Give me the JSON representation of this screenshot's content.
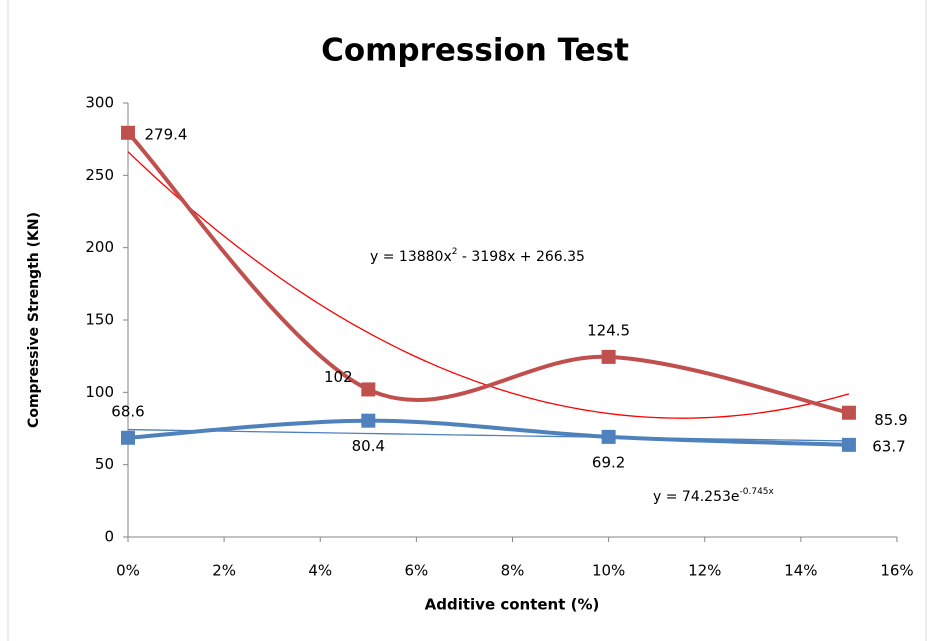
{
  "chart_data": {
    "type": "line",
    "title": "Compression Test",
    "x_label": "Additive content (%)",
    "y_label": "Compressive Strength (KN)",
    "x": [
      0,
      0.05,
      0.1,
      0.15
    ],
    "xlim": [
      0,
      0.16
    ],
    "xticks": [
      {
        "value": 0,
        "label": "0%"
      },
      {
        "value": 0.02,
        "label": "2%"
      },
      {
        "value": 0.04,
        "label": "4%"
      },
      {
        "value": 0.06,
        "label": "6%"
      },
      {
        "value": 0.08,
        "label": "8%"
      },
      {
        "value": 0.1,
        "label": "10%"
      },
      {
        "value": 0.12,
        "label": "12%"
      },
      {
        "value": 0.14,
        "label": "14%"
      },
      {
        "value": 0.16,
        "label": "16%"
      }
    ],
    "ylim": [
      0,
      300
    ],
    "yticks": [
      0,
      50,
      100,
      150,
      200,
      250,
      300
    ],
    "grid": false,
    "smooth": true,
    "series": [
      {
        "color": "#c0504d",
        "values": [
          279.4,
          102,
          124.5,
          85.9
        ],
        "trendline": {
          "type": "polynomial",
          "color": "#ff0000",
          "coefficients": [
            13880,
            -3198,
            266.35
          ],
          "label": {
            "pre": "y = 13880x",
            "sup": "2",
            "post": " - 3198x + 266.35"
          }
        }
      },
      {
        "color": "#4f81bd",
        "values": [
          68.6,
          80.4,
          69.2,
          63.7
        ],
        "trendline": {
          "type": "exponential",
          "color": "#4f81bd",
          "coefficients": [
            74.253,
            -0.745
          ],
          "label": {
            "pre": "y = 74.253e",
            "sup": "-0.745x",
            "post": ""
          }
        }
      }
    ]
  }
}
